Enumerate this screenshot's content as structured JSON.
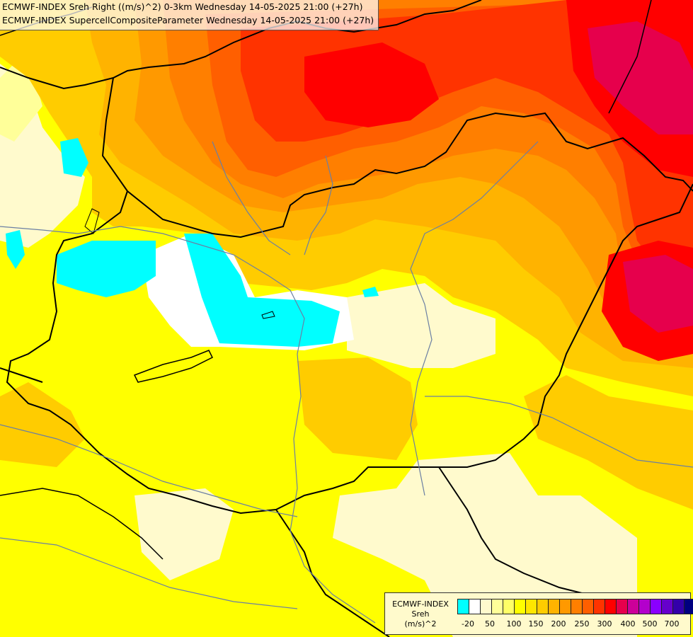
{
  "title": {
    "line1": "ECMWF-INDEX Sreh Right ((m/s)^2) 0-3km Wednesday 14-05-2025 21:00 (+27h)",
    "line2": "ECMWF-INDEX SupercellCompositeParameter Wednesday 14-05-2025 21:00 (+27h)"
  },
  "legend": {
    "line1": "ECMWF-INDEX",
    "line2": "Sreh",
    "line3": "(m/s)^2",
    "colors": [
      "#00ffff",
      "#ffffff",
      "#fffacd",
      "#ffff99",
      "#ffff66",
      "#ffff00",
      "#ffe600",
      "#ffcc00",
      "#ffb300",
      "#ff9900",
      "#ff7f00",
      "#ff5f00",
      "#ff3300",
      "#ff0000",
      "#e6004c",
      "#cc0099",
      "#b300cc",
      "#8a00ff",
      "#6600cc",
      "#3300aa",
      "#000080"
    ],
    "ticks": [
      "-20",
      "50",
      "100",
      "150",
      "200",
      "250",
      "300",
      "400",
      "500",
      "700"
    ]
  },
  "map": {
    "colors": {
      "bg": "#ffff00",
      "pale": "#fffacd",
      "light": "#ffff99",
      "yellow2": "#ffe600",
      "gold": "#ffcc00",
      "orange1": "#ffb300",
      "orange2": "#ff9900",
      "orange3": "#ff7f00",
      "orange4": "#ff5f00",
      "red1": "#ff3300",
      "red2": "#ff0000",
      "crimson": "#e6004c",
      "cyan": "#00ffff",
      "white": "#ffffff",
      "border": "#000000",
      "river": "#6b7fa3"
    }
  }
}
